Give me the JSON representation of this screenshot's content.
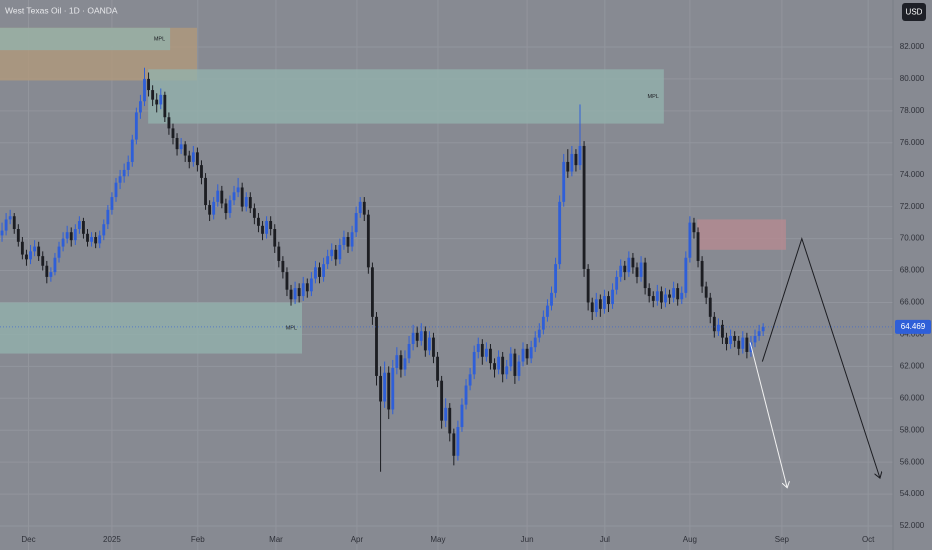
{
  "chart_data": {
    "type": "candlestick",
    "title": "West Texas Oil · 1D · OANDA",
    "currency": "USD",
    "up_color": "#2f5fd8",
    "down_color": "#1c1d22",
    "grid": true,
    "xlim": [
      0,
      219.4
    ],
    "ylim": [
      50.5,
      84.94
    ],
    "xticks": [
      {
        "value": 7,
        "label": "Dec"
      },
      {
        "value": 27.5,
        "label": "2025"
      },
      {
        "value": 48.6,
        "label": "Feb"
      },
      {
        "value": 67.8,
        "label": "Mar"
      },
      {
        "value": 87.7,
        "label": "Apr"
      },
      {
        "value": 107.6,
        "label": "May"
      },
      {
        "value": 129.5,
        "label": "Jun"
      },
      {
        "value": 148.6,
        "label": "Jul"
      },
      {
        "value": 169.5,
        "label": "Aug"
      },
      {
        "value": 192.1,
        "label": "Sep"
      },
      {
        "value": 213.3,
        "label": "Oct"
      }
    ],
    "yticks": [
      {
        "value": 52,
        "label": "52.000"
      },
      {
        "value": 54,
        "label": "54.000"
      },
      {
        "value": 56,
        "label": "56.000"
      },
      {
        "value": 58,
        "label": "58.000"
      },
      {
        "value": 60,
        "label": "60.000"
      },
      {
        "value": 62,
        "label": "62.000"
      },
      {
        "value": 64,
        "label": "64.000"
      },
      {
        "value": 66,
        "label": "66.000"
      },
      {
        "value": 68,
        "label": "68.000"
      },
      {
        "value": 70,
        "label": "70.000"
      },
      {
        "value": 72,
        "label": "72.000"
      },
      {
        "value": 74,
        "label": "74.000"
      },
      {
        "value": 76,
        "label": "76.000"
      },
      {
        "value": 78,
        "label": "78.000"
      },
      {
        "value": 80,
        "label": "80.000"
      },
      {
        "value": 82,
        "label": "82.000"
      }
    ],
    "last_price": {
      "value": 64.469,
      "label": "64.469"
    },
    "zones": [
      {
        "x0": 0,
        "x1": 48.4,
        "top": 83.2,
        "bottom": 79.9,
        "color": "#b39a7a"
      },
      {
        "x0": 0,
        "x1": 41.8,
        "top": 83.2,
        "bottom": 81.8,
        "color": "#93b3ae",
        "label": "MPL"
      },
      {
        "x0": 36.4,
        "x1": 163.1,
        "top": 80.6,
        "bottom": 77.2,
        "color": "#93b3ae",
        "label": "MPL"
      },
      {
        "x0": 0,
        "x1": 74.2,
        "top": 66.0,
        "bottom": 62.8,
        "color": "#93b3ae",
        "label": "MPL"
      },
      {
        "x0": 171.3,
        "x1": 193.1,
        "top": 71.2,
        "bottom": 69.3,
        "color": "#b88a90"
      }
    ],
    "projections": [
      {
        "color": "#1c1d22",
        "points": [
          [
            187.3,
            62.3
          ],
          [
            197,
            70.0
          ],
          [
            216.2,
            55.0
          ]
        ]
      },
      {
        "color": "#f2f2f2",
        "points": [
          [
            184.3,
            63.5
          ],
          [
            193.4,
            54.4
          ]
        ]
      }
    ],
    "candles": [
      [
        70.2,
        71.0,
        69.8,
        70.5
      ],
      [
        70.5,
        71.6,
        70.2,
        71.2
      ],
      [
        71.2,
        71.8,
        70.9,
        71.4
      ],
      [
        71.4,
        71.6,
        70.3,
        70.6
      ],
      [
        70.6,
        70.9,
        69.5,
        69.8
      ],
      [
        69.8,
        70.1,
        68.7,
        69.0
      ],
      [
        69.0,
        69.3,
        68.3,
        68.7
      ],
      [
        68.7,
        69.6,
        68.4,
        69.2
      ],
      [
        69.2,
        69.9,
        68.9,
        69.5
      ],
      [
        69.5,
        69.8,
        68.6,
        68.9
      ],
      [
        68.9,
        69.2,
        68.0,
        68.3
      ],
      [
        68.3,
        68.6,
        67.2,
        67.6
      ],
      [
        67.6,
        68.2,
        67.3,
        67.9
      ],
      [
        67.9,
        69.1,
        67.7,
        68.8
      ],
      [
        68.8,
        69.8,
        68.5,
        69.5
      ],
      [
        69.5,
        70.4,
        69.2,
        70.0
      ],
      [
        70.0,
        70.8,
        69.7,
        70.4
      ],
      [
        70.4,
        70.7,
        69.5,
        69.9
      ],
      [
        69.9,
        70.9,
        69.6,
        70.6
      ],
      [
        70.6,
        71.4,
        70.3,
        71.1
      ],
      [
        71.1,
        71.3,
        70.0,
        70.3
      ],
      [
        70.3,
        70.6,
        69.5,
        69.8
      ],
      [
        69.8,
        70.4,
        69.5,
        70.1
      ],
      [
        70.1,
        70.4,
        69.4,
        69.7
      ],
      [
        69.7,
        70.5,
        69.4,
        70.2
      ],
      [
        70.2,
        71.2,
        69.9,
        70.9
      ],
      [
        70.9,
        72.1,
        70.6,
        71.8
      ],
      [
        71.8,
        72.9,
        71.5,
        72.6
      ],
      [
        72.6,
        73.8,
        72.3,
        73.5
      ],
      [
        73.5,
        74.3,
        73.1,
        73.9
      ],
      [
        73.9,
        74.7,
        73.5,
        74.3
      ],
      [
        74.3,
        75.2,
        73.9,
        74.8
      ],
      [
        74.8,
        76.5,
        74.5,
        76.2
      ],
      [
        76.2,
        78.2,
        75.9,
        77.9
      ],
      [
        77.9,
        79.0,
        77.5,
        78.6
      ],
      [
        78.6,
        80.7,
        78.3,
        80.0
      ],
      [
        80.0,
        80.4,
        78.9,
        79.3
      ],
      [
        79.3,
        79.6,
        78.3,
        78.7
      ],
      [
        78.7,
        79.1,
        77.9,
        78.4
      ],
      [
        78.4,
        79.4,
        78.1,
        79.0
      ],
      [
        79.0,
        79.2,
        77.3,
        77.6
      ],
      [
        77.6,
        77.9,
        76.5,
        76.9
      ],
      [
        76.9,
        77.2,
        75.9,
        76.3
      ],
      [
        76.3,
        76.6,
        75.2,
        75.6
      ],
      [
        75.6,
        76.3,
        75.3,
        75.9
      ],
      [
        75.9,
        76.1,
        74.8,
        75.2
      ],
      [
        75.2,
        75.5,
        74.4,
        74.8
      ],
      [
        74.8,
        75.8,
        74.5,
        75.4
      ],
      [
        75.4,
        75.7,
        74.2,
        74.6
      ],
      [
        74.6,
        74.9,
        73.4,
        73.8
      ],
      [
        73.8,
        74.1,
        71.8,
        72.1
      ],
      [
        72.1,
        72.4,
        71.1,
        71.5
      ],
      [
        71.5,
        72.6,
        71.2,
        72.3
      ],
      [
        72.3,
        73.4,
        72.0,
        73.0
      ],
      [
        73.0,
        73.3,
        71.9,
        72.2
      ],
      [
        72.2,
        72.5,
        71.2,
        71.6
      ],
      [
        71.6,
        72.7,
        71.3,
        72.4
      ],
      [
        72.4,
        73.3,
        72.1,
        72.9
      ],
      [
        72.9,
        73.8,
        72.6,
        73.2
      ],
      [
        73.2,
        73.5,
        71.7,
        72.0
      ],
      [
        72.0,
        72.9,
        71.7,
        72.6
      ],
      [
        72.6,
        72.9,
        71.6,
        71.9
      ],
      [
        71.9,
        72.2,
        70.9,
        71.3
      ],
      [
        71.3,
        71.6,
        70.4,
        70.8
      ],
      [
        70.8,
        71.1,
        69.9,
        70.3
      ],
      [
        70.3,
        71.4,
        70.0,
        71.1
      ],
      [
        71.1,
        71.4,
        70.2,
        70.6
      ],
      [
        70.6,
        70.9,
        69.1,
        69.5
      ],
      [
        69.5,
        69.8,
        68.2,
        68.6
      ],
      [
        68.6,
        68.9,
        67.5,
        67.9
      ],
      [
        67.9,
        68.2,
        66.4,
        66.8
      ],
      [
        66.8,
        67.1,
        65.8,
        66.2
      ],
      [
        66.2,
        67.3,
        65.9,
        66.9
      ],
      [
        66.9,
        67.2,
        66.0,
        66.4
      ],
      [
        66.4,
        67.6,
        66.1,
        67.2
      ],
      [
        67.2,
        67.5,
        66.3,
        66.7
      ],
      [
        66.7,
        67.9,
        66.4,
        67.5
      ],
      [
        67.5,
        68.6,
        67.2,
        68.2
      ],
      [
        68.2,
        68.5,
        67.2,
        67.6
      ],
      [
        67.6,
        68.8,
        67.3,
        68.4
      ],
      [
        68.4,
        69.3,
        68.1,
        68.9
      ],
      [
        68.9,
        69.7,
        68.6,
        69.3
      ],
      [
        69.3,
        69.6,
        68.3,
        68.7
      ],
      [
        68.7,
        70.0,
        68.4,
        69.6
      ],
      [
        69.6,
        70.5,
        69.3,
        70.1
      ],
      [
        70.1,
        70.4,
        69.1,
        69.5
      ],
      [
        69.5,
        70.8,
        69.2,
        70.4
      ],
      [
        70.4,
        72.0,
        70.1,
        71.6
      ],
      [
        71.6,
        72.6,
        71.3,
        72.3
      ],
      [
        72.3,
        72.6,
        71.1,
        71.5
      ],
      [
        71.5,
        71.8,
        67.8,
        68.2
      ],
      [
        68.2,
        68.5,
        64.6,
        65.1
      ],
      [
        65.1,
        65.4,
        60.8,
        61.4
      ],
      [
        61.4,
        62.0,
        55.4,
        59.8
      ],
      [
        59.8,
        62.3,
        59.4,
        61.6
      ],
      [
        61.6,
        62.0,
        58.7,
        59.3
      ],
      [
        59.3,
        62.4,
        59.0,
        61.9
      ],
      [
        61.9,
        63.2,
        61.5,
        62.7
      ],
      [
        62.7,
        63.0,
        61.3,
        61.8
      ],
      [
        61.8,
        63.0,
        61.4,
        62.5
      ],
      [
        62.5,
        63.9,
        62.2,
        63.4
      ],
      [
        63.4,
        64.6,
        63.0,
        64.1
      ],
      [
        64.1,
        64.5,
        63.2,
        63.6
      ],
      [
        63.6,
        64.7,
        63.3,
        64.2
      ],
      [
        64.2,
        64.5,
        62.6,
        63.0
      ],
      [
        63.0,
        64.2,
        62.7,
        63.8
      ],
      [
        63.8,
        64.1,
        62.2,
        62.6
      ],
      [
        62.6,
        62.9,
        60.7,
        61.1
      ],
      [
        61.1,
        61.4,
        58.1,
        58.6
      ],
      [
        58.6,
        60.0,
        58.2,
        59.4
      ],
      [
        59.4,
        59.7,
        57.3,
        57.8
      ],
      [
        57.8,
        58.1,
        55.8,
        56.4
      ],
      [
        56.4,
        58.6,
        56.1,
        58.2
      ],
      [
        58.2,
        60.0,
        57.9,
        59.6
      ],
      [
        59.6,
        61.2,
        59.3,
        60.8
      ],
      [
        60.8,
        61.9,
        60.5,
        61.5
      ],
      [
        61.5,
        63.3,
        61.2,
        62.9
      ],
      [
        62.9,
        63.8,
        62.5,
        63.4
      ],
      [
        63.4,
        63.7,
        62.1,
        62.6
      ],
      [
        62.6,
        63.5,
        62.3,
        63.1
      ],
      [
        63.1,
        63.4,
        61.8,
        62.2
      ],
      [
        62.2,
        62.5,
        61.3,
        61.8
      ],
      [
        61.8,
        63.0,
        61.5,
        62.6
      ],
      [
        62.6,
        62.9,
        61.0,
        61.5
      ],
      [
        61.5,
        62.4,
        61.2,
        62.0
      ],
      [
        62.0,
        63.2,
        61.7,
        62.8
      ],
      [
        62.8,
        63.1,
        60.9,
        61.4
      ],
      [
        61.4,
        62.7,
        61.1,
        62.3
      ],
      [
        62.3,
        63.5,
        62.0,
        63.1
      ],
      [
        63.1,
        63.4,
        62.1,
        62.5
      ],
      [
        62.5,
        63.6,
        62.2,
        63.2
      ],
      [
        63.2,
        64.2,
        62.9,
        63.8
      ],
      [
        63.8,
        64.7,
        63.5,
        64.3
      ],
      [
        64.3,
        65.5,
        64.0,
        65.1
      ],
      [
        65.1,
        66.2,
        64.8,
        65.8
      ],
      [
        65.8,
        67.0,
        65.5,
        66.6
      ],
      [
        66.6,
        68.8,
        66.3,
        68.4
      ],
      [
        68.4,
        72.7,
        68.1,
        72.3
      ],
      [
        72.3,
        75.3,
        72.0,
        74.8
      ],
      [
        74.8,
        75.6,
        73.8,
        74.2
      ],
      [
        74.2,
        75.8,
        73.9,
        75.3
      ],
      [
        75.3,
        75.6,
        74.2,
        74.6
      ],
      [
        74.6,
        78.4,
        74.3,
        75.8
      ],
      [
        75.8,
        76.1,
        67.6,
        68.1
      ],
      [
        68.1,
        68.4,
        65.5,
        66.0
      ],
      [
        66.0,
        66.3,
        64.9,
        65.4
      ],
      [
        65.4,
        66.6,
        65.1,
        66.2
      ],
      [
        66.2,
        66.5,
        65.1,
        65.6
      ],
      [
        65.6,
        66.8,
        65.3,
        66.4
      ],
      [
        66.4,
        66.7,
        65.4,
        65.9
      ],
      [
        65.9,
        67.2,
        65.6,
        66.8
      ],
      [
        66.8,
        68.0,
        66.5,
        67.6
      ],
      [
        67.6,
        68.7,
        67.3,
        68.3
      ],
      [
        68.3,
        68.6,
        67.4,
        67.9
      ],
      [
        67.9,
        69.2,
        67.6,
        68.8
      ],
      [
        68.8,
        69.1,
        67.8,
        68.2
      ],
      [
        68.2,
        68.5,
        67.2,
        67.6
      ],
      [
        67.6,
        68.9,
        67.3,
        68.5
      ],
      [
        68.5,
        68.8,
        66.5,
        66.9
      ],
      [
        66.9,
        67.2,
        66.0,
        66.4
      ],
      [
        66.4,
        66.7,
        65.7,
        66.1
      ],
      [
        66.1,
        67.1,
        65.8,
        66.7
      ],
      [
        66.7,
        67.0,
        65.6,
        66.0
      ],
      [
        66.0,
        66.9,
        65.7,
        66.5
      ],
      [
        66.5,
        66.8,
        65.9,
        66.3
      ],
      [
        66.3,
        67.3,
        66.0,
        66.9
      ],
      [
        66.9,
        67.2,
        65.8,
        66.2
      ],
      [
        66.2,
        67.0,
        65.9,
        66.6
      ],
      [
        66.6,
        69.2,
        66.3,
        68.8
      ],
      [
        68.8,
        71.4,
        68.5,
        71.0
      ],
      [
        71.0,
        71.3,
        70.0,
        70.4
      ],
      [
        70.4,
        70.7,
        68.2,
        68.6
      ],
      [
        68.6,
        68.9,
        66.6,
        67.0
      ],
      [
        67.0,
        67.3,
        65.9,
        66.3
      ],
      [
        66.3,
        66.6,
        64.7,
        65.1
      ],
      [
        65.1,
        65.4,
        63.8,
        64.2
      ],
      [
        64.2,
        65.0,
        63.9,
        64.6
      ],
      [
        64.6,
        64.9,
        63.4,
        63.8
      ],
      [
        63.8,
        64.1,
        63.0,
        63.4
      ],
      [
        63.4,
        64.3,
        63.1,
        63.9
      ],
      [
        63.9,
        64.2,
        63.2,
        63.6
      ],
      [
        63.6,
        63.9,
        62.7,
        63.1
      ],
      [
        63.1,
        64.2,
        62.8,
        63.8
      ],
      [
        63.8,
        64.1,
        62.5,
        62.9
      ],
      [
        62.9,
        63.9,
        62.6,
        63.5
      ],
      [
        63.5,
        64.3,
        63.2,
        63.9
      ],
      [
        63.9,
        64.6,
        63.6,
        64.2
      ],
      [
        64.2,
        64.7,
        63.9,
        64.469
      ]
    ]
  }
}
